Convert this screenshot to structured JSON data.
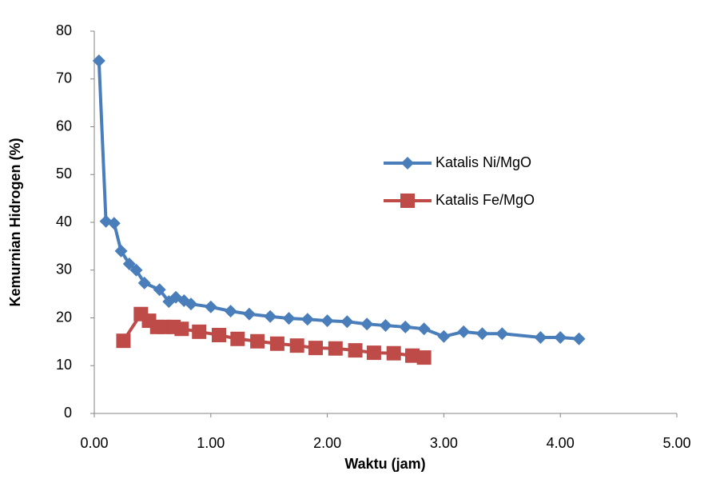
{
  "chart_data": {
    "type": "line",
    "x_label": "Waktu (jam)",
    "y_label": "Kemurnian Hidrogen (%)",
    "xlim": [
      0,
      5
    ],
    "xticks": [
      {
        "value": 0,
        "label": "0.00"
      },
      {
        "value": 1,
        "label": "1.00"
      },
      {
        "value": 2,
        "label": "2.00"
      },
      {
        "value": 3,
        "label": "3.00"
      },
      {
        "value": 4,
        "label": "4.00"
      },
      {
        "value": 5,
        "label": "5.00"
      }
    ],
    "ylim": [
      0,
      80
    ],
    "yticks": [
      0,
      10,
      20,
      30,
      40,
      50,
      60,
      70,
      80
    ],
    "grid": false,
    "legend": "right",
    "series": [
      {
        "name": "Katalis Ni/MgO",
        "color": "#4a7ebb",
        "marker": "diamond",
        "x": [
          0.04,
          0.1,
          0.17,
          0.23,
          0.3,
          0.36,
          0.43,
          0.56,
          0.64,
          0.7,
          0.77,
          0.83,
          1.0,
          1.17,
          1.33,
          1.51,
          1.67,
          1.83,
          2.0,
          2.17,
          2.34,
          2.5,
          2.67,
          2.83,
          3.0,
          3.17,
          3.33,
          3.5,
          3.83,
          4.0,
          4.16
        ],
        "values": [
          73.8,
          40.2,
          39.8,
          34.0,
          31.3,
          30.0,
          27.3,
          25.9,
          23.4,
          24.3,
          23.6,
          22.9,
          22.3,
          21.4,
          20.8,
          20.3,
          19.9,
          19.7,
          19.4,
          19.2,
          18.7,
          18.4,
          18.1,
          17.7,
          16.1,
          17.1,
          16.7,
          16.7,
          15.9,
          15.9,
          15.6
        ]
      },
      {
        "name": "Katalis Fe/MgO",
        "color": "#be4b48",
        "marker": "square",
        "x": [
          0.25,
          0.4,
          0.47,
          0.54,
          0.6,
          0.68,
          0.75,
          0.9,
          1.07,
          1.23,
          1.4,
          1.57,
          1.74,
          1.9,
          2.07,
          2.24,
          2.4,
          2.57,
          2.73,
          2.83
        ],
        "values": [
          15.2,
          20.8,
          19.4,
          18.1,
          18.1,
          18.1,
          17.7,
          17.1,
          16.4,
          15.6,
          15.1,
          14.6,
          14.2,
          13.7,
          13.6,
          13.2,
          12.7,
          12.6,
          12.1,
          11.7
        ]
      }
    ]
  }
}
